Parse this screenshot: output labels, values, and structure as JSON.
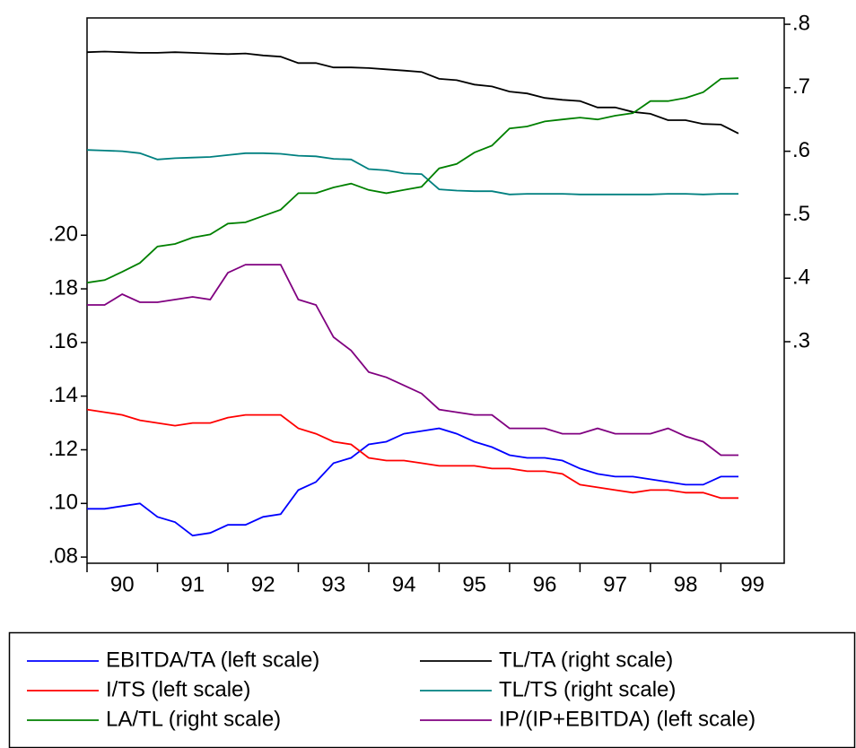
{
  "chart_data": {
    "type": "line",
    "x": [
      90,
      90.25,
      90.5,
      90.75,
      91,
      91.25,
      91.5,
      91.75,
      92,
      92.25,
      92.5,
      92.75,
      93,
      93.25,
      93.5,
      93.75,
      94,
      94.25,
      94.5,
      94.75,
      95,
      95.25,
      95.5,
      95.75,
      96,
      96.25,
      96.5,
      96.75,
      97,
      97.25,
      97.5,
      97.75,
      98,
      98.25,
      98.5,
      98.75,
      99,
      99.25
    ],
    "xlim": [
      90,
      99.9
    ],
    "xticks": [
      90,
      91,
      92,
      93,
      94,
      95,
      96,
      97,
      98,
      99
    ],
    "ylim": [
      0.0777,
      0.281
    ],
    "yticks": [
      {
        "value": 0.08,
        "label": ".08"
      },
      {
        "value": 0.1,
        "label": ".10"
      },
      {
        "value": 0.12,
        "label": ".12"
      },
      {
        "value": 0.14,
        "label": ".14"
      },
      {
        "value": 0.16,
        "label": ".16"
      },
      {
        "value": 0.18,
        "label": ".18"
      },
      {
        "value": 0.2,
        "label": ".20"
      }
    ],
    "y2lim": [
      -0.049,
      0.81
    ],
    "y2ticks": [
      {
        "value": 0.3,
        "label": ".3"
      },
      {
        "value": 0.4,
        "label": ".4"
      },
      {
        "value": 0.5,
        "label": ".5"
      },
      {
        "value": 0.6,
        "label": ".6"
      },
      {
        "value": 0.7,
        "label": ".7"
      },
      {
        "value": 0.8,
        "label": ".8"
      }
    ],
    "legend": "bottom",
    "series": [
      {
        "name": "EBITDA/TA (left scale)",
        "color": "#0000ff",
        "axis": "y",
        "values": [
          0.098,
          0.098,
          0.099,
          0.1,
          0.095,
          0.093,
          0.088,
          0.089,
          0.092,
          0.092,
          0.095,
          0.096,
          0.105,
          0.108,
          0.115,
          0.117,
          0.122,
          0.123,
          0.126,
          0.127,
          0.128,
          0.126,
          0.123,
          0.121,
          0.118,
          0.117,
          0.117,
          0.116,
          0.113,
          0.111,
          0.11,
          0.11,
          0.109,
          0.108,
          0.107,
          0.107,
          0.11,
          0.11
        ]
      },
      {
        "name": "TL/TA (right scale)",
        "color": "#000000",
        "axis": "y2",
        "values": [
          0.756,
          0.757,
          0.756,
          0.755,
          0.755,
          0.756,
          0.755,
          0.754,
          0.753,
          0.754,
          0.751,
          0.749,
          0.739,
          0.739,
          0.732,
          0.732,
          0.731,
          0.729,
          0.727,
          0.725,
          0.714,
          0.712,
          0.705,
          0.702,
          0.694,
          0.691,
          0.684,
          0.681,
          0.679,
          0.669,
          0.669,
          0.662,
          0.659,
          0.649,
          0.649,
          0.643,
          0.642,
          0.628
        ]
      },
      {
        "name": "I/TS (left scale)",
        "color": "#ff0000",
        "axis": "y",
        "values": [
          0.135,
          0.134,
          0.133,
          0.131,
          0.13,
          0.129,
          0.13,
          0.13,
          0.132,
          0.133,
          0.133,
          0.133,
          0.128,
          0.126,
          0.123,
          0.122,
          0.117,
          0.116,
          0.116,
          0.115,
          0.114,
          0.114,
          0.114,
          0.113,
          0.113,
          0.112,
          0.112,
          0.111,
          0.107,
          0.106,
          0.105,
          0.104,
          0.105,
          0.105,
          0.104,
          0.104,
          0.102,
          0.102
        ]
      },
      {
        "name": "TL/TS (right scale)",
        "color": "#008080",
        "axis": "y2",
        "values": [
          0.602,
          0.601,
          0.6,
          0.597,
          0.587,
          0.589,
          0.59,
          0.591,
          0.594,
          0.597,
          0.597,
          0.596,
          0.593,
          0.592,
          0.588,
          0.587,
          0.572,
          0.57,
          0.565,
          0.564,
          0.54,
          0.538,
          0.537,
          0.537,
          0.532,
          0.533,
          0.533,
          0.533,
          0.532,
          0.532,
          0.532,
          0.532,
          0.532,
          0.533,
          0.533,
          0.532,
          0.533,
          0.533
        ]
      },
      {
        "name": "LA/TL (right scale)",
        "color": "#008000",
        "axis": "y2",
        "values": [
          0.393,
          0.397,
          0.41,
          0.424,
          0.45,
          0.454,
          0.464,
          0.469,
          0.486,
          0.488,
          0.498,
          0.508,
          0.534,
          0.534,
          0.543,
          0.549,
          0.539,
          0.534,
          0.539,
          0.544,
          0.573,
          0.58,
          0.598,
          0.609,
          0.636,
          0.639,
          0.647,
          0.65,
          0.653,
          0.65,
          0.656,
          0.66,
          0.679,
          0.679,
          0.684,
          0.693,
          0.714,
          0.715
        ]
      },
      {
        "name": "IP/(IP+EBITDA) (left scale)",
        "color": "#800080",
        "axis": "y",
        "values": [
          0.174,
          0.174,
          0.178,
          0.175,
          0.175,
          0.176,
          0.177,
          0.176,
          0.186,
          0.189,
          0.189,
          0.189,
          0.176,
          0.174,
          0.162,
          0.157,
          0.149,
          0.147,
          0.144,
          0.141,
          0.135,
          0.134,
          0.133,
          0.133,
          0.128,
          0.128,
          0.128,
          0.126,
          0.126,
          0.128,
          0.126,
          0.126,
          0.126,
          0.128,
          0.125,
          0.123,
          0.118,
          0.118
        ]
      }
    ]
  }
}
